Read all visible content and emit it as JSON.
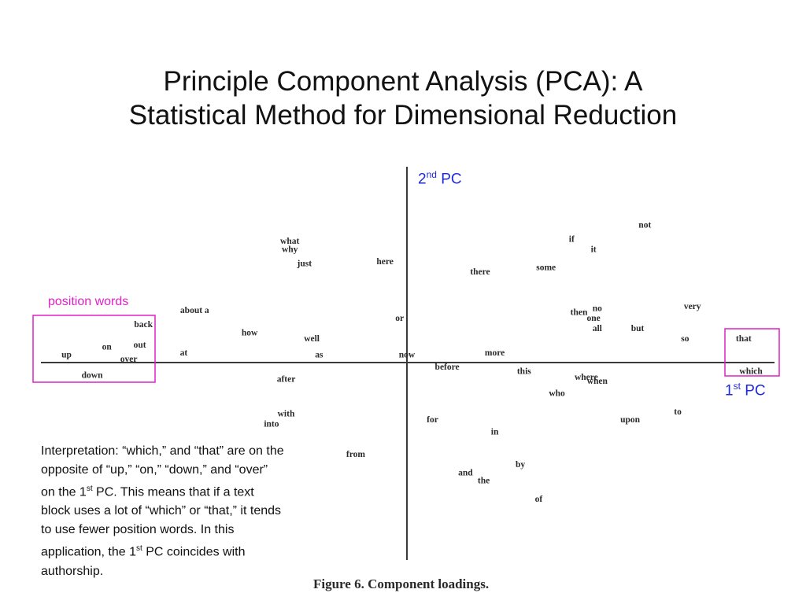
{
  "title": {
    "line1": "Principle Component Analysis (PCA): A",
    "line2": "Statistical Method for Dimensional Reduction"
  },
  "axes": {
    "y_label": {
      "prefix": "2",
      "sup": "nd",
      "suffix": " PC"
    },
    "x_label": {
      "prefix": "1",
      "sup": "st",
      "suffix": " PC"
    },
    "label_color": "#1f2bd6"
  },
  "highlight": {
    "label": "position words",
    "color": "#e020c8"
  },
  "interpretation": {
    "part1": "Interpretation: “which,” and “that” are on the opposite of “up,” “on,” “down,” and “over” on the 1",
    "sup1": "st",
    "part2": " PC. This means that if a text block uses a lot of “which” or “that,” it tends to use fewer position words. In this application, the 1",
    "sup2": "st",
    "part3": " PC coincides with authorship."
  },
  "caption": "Figure 6. Component loadings.",
  "chart_data": {
    "type": "scatter",
    "xlabel": "1st PC",
    "ylabel": "2nd PC",
    "xlim": [
      -1,
      1
    ],
    "ylim": [
      -1,
      1
    ],
    "grid": false,
    "points": [
      {
        "label": "not",
        "x": 0.65,
        "y": 0.68
      },
      {
        "label": "if",
        "x": 0.45,
        "y": 0.61
      },
      {
        "label": "it",
        "x": 0.51,
        "y": 0.56
      },
      {
        "label": "what",
        "x": -0.32,
        "y": 0.6
      },
      {
        "label": "why",
        "x": -0.32,
        "y": 0.56
      },
      {
        "label": "just",
        "x": -0.28,
        "y": 0.49
      },
      {
        "label": "here",
        "x": -0.06,
        "y": 0.5
      },
      {
        "label": "there",
        "x": 0.2,
        "y": 0.45
      },
      {
        "label": "some",
        "x": 0.38,
        "y": 0.47
      },
      {
        "label": "about a",
        "x": -0.58,
        "y": 0.26
      },
      {
        "label": "very",
        "x": 0.78,
        "y": 0.28
      },
      {
        "label": "then",
        "x": 0.47,
        "y": 0.25
      },
      {
        "label": "no",
        "x": 0.52,
        "y": 0.27
      },
      {
        "label": "one",
        "x": 0.51,
        "y": 0.22
      },
      {
        "label": "all",
        "x": 0.52,
        "y": 0.17
      },
      {
        "label": "but",
        "x": 0.63,
        "y": 0.17
      },
      {
        "label": "or",
        "x": -0.02,
        "y": 0.22
      },
      {
        "label": "back",
        "x": -0.72,
        "y": 0.19
      },
      {
        "label": "how",
        "x": -0.43,
        "y": 0.15
      },
      {
        "label": "well",
        "x": -0.26,
        "y": 0.12
      },
      {
        "label": "so",
        "x": 0.76,
        "y": 0.12
      },
      {
        "label": "that",
        "x": 0.92,
        "y": 0.12
      },
      {
        "label": "on",
        "x": -0.82,
        "y": 0.08
      },
      {
        "label": "out",
        "x": -0.73,
        "y": 0.09
      },
      {
        "label": "up",
        "x": -0.93,
        "y": 0.04
      },
      {
        "label": "over",
        "x": -0.76,
        "y": 0.02
      },
      {
        "label": "at",
        "x": -0.61,
        "y": 0.05
      },
      {
        "label": "as",
        "x": -0.24,
        "y": 0.04
      },
      {
        "label": "now",
        "x": 0,
        "y": 0.04
      },
      {
        "label": "more",
        "x": 0.24,
        "y": 0.05
      },
      {
        "label": "before",
        "x": 0.11,
        "y": -0.02
      },
      {
        "label": "this",
        "x": 0.32,
        "y": -0.04
      },
      {
        "label": "down",
        "x": -0.86,
        "y": -0.06
      },
      {
        "label": "which",
        "x": 0.94,
        "y": -0.04
      },
      {
        "label": "where",
        "x": 0.49,
        "y": -0.07
      },
      {
        "label": "when",
        "x": 0.52,
        "y": -0.09
      },
      {
        "label": "after",
        "x": -0.33,
        "y": -0.08
      },
      {
        "label": "who",
        "x": 0.41,
        "y": -0.15
      },
      {
        "label": "with",
        "x": -0.33,
        "y": -0.25
      },
      {
        "label": "into",
        "x": -0.37,
        "y": -0.3
      },
      {
        "label": "to",
        "x": 0.74,
        "y": -0.24
      },
      {
        "label": "for",
        "x": 0.07,
        "y": -0.28
      },
      {
        "label": "upon",
        "x": 0.61,
        "y": -0.28
      },
      {
        "label": "in",
        "x": 0.24,
        "y": -0.34
      },
      {
        "label": "from",
        "x": -0.14,
        "y": -0.45
      },
      {
        "label": "by",
        "x": 0.31,
        "y": -0.5
      },
      {
        "label": "and",
        "x": 0.16,
        "y": -0.54
      },
      {
        "label": "the",
        "x": 0.21,
        "y": -0.58
      },
      {
        "label": "of",
        "x": 0.36,
        "y": -0.67
      }
    ]
  }
}
